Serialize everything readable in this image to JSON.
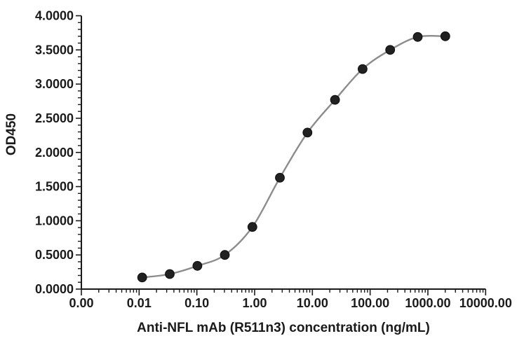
{
  "chart_data": {
    "type": "scatter",
    "title": "",
    "xlabel": "Anti-NFL mAb (R511n3) concentration (ng/mL)",
    "ylabel": "OD450",
    "x_scale": "log",
    "xlim": [
      0.001,
      10000
    ],
    "ylim": [
      0,
      4
    ],
    "grid": "off",
    "legend": "none",
    "x": [
      0.0113,
      0.0339,
      0.102,
      0.305,
      0.914,
      2.74,
      8.23,
      24.7,
      74.1,
      222.2,
      666.7,
      2000
    ],
    "y": [
      0.17,
      0.22,
      0.34,
      0.5,
      0.91,
      1.63,
      2.29,
      2.77,
      3.22,
      3.5,
      3.69,
      3.7
    ],
    "x_tick_values": [
      0.001,
      0.01,
      0.1,
      1,
      10,
      100,
      1000,
      10000
    ],
    "x_tick_labels": [
      "0.00",
      "0.01",
      "0.10",
      "1.00",
      "10.00",
      "100.00",
      "1000.00",
      "10000.00"
    ],
    "y_tick_values": [
      0,
      0.5,
      1,
      1.5,
      2,
      2.5,
      3,
      3.5,
      4
    ],
    "y_tick_labels": [
      "0.0000",
      "0.5000",
      "1.0000",
      "1.5000",
      "2.0000",
      "2.5000",
      "3.0000",
      "3.5000",
      "4.0000"
    ],
    "y_minor_step": 0.1,
    "colors": {
      "marker": "#212121",
      "marker_edge": "#0d0d0d",
      "line": "#8c8c8c",
      "axis": "#1a1a1a",
      "text": "#1a1a1a",
      "background": "#ffffff"
    }
  }
}
